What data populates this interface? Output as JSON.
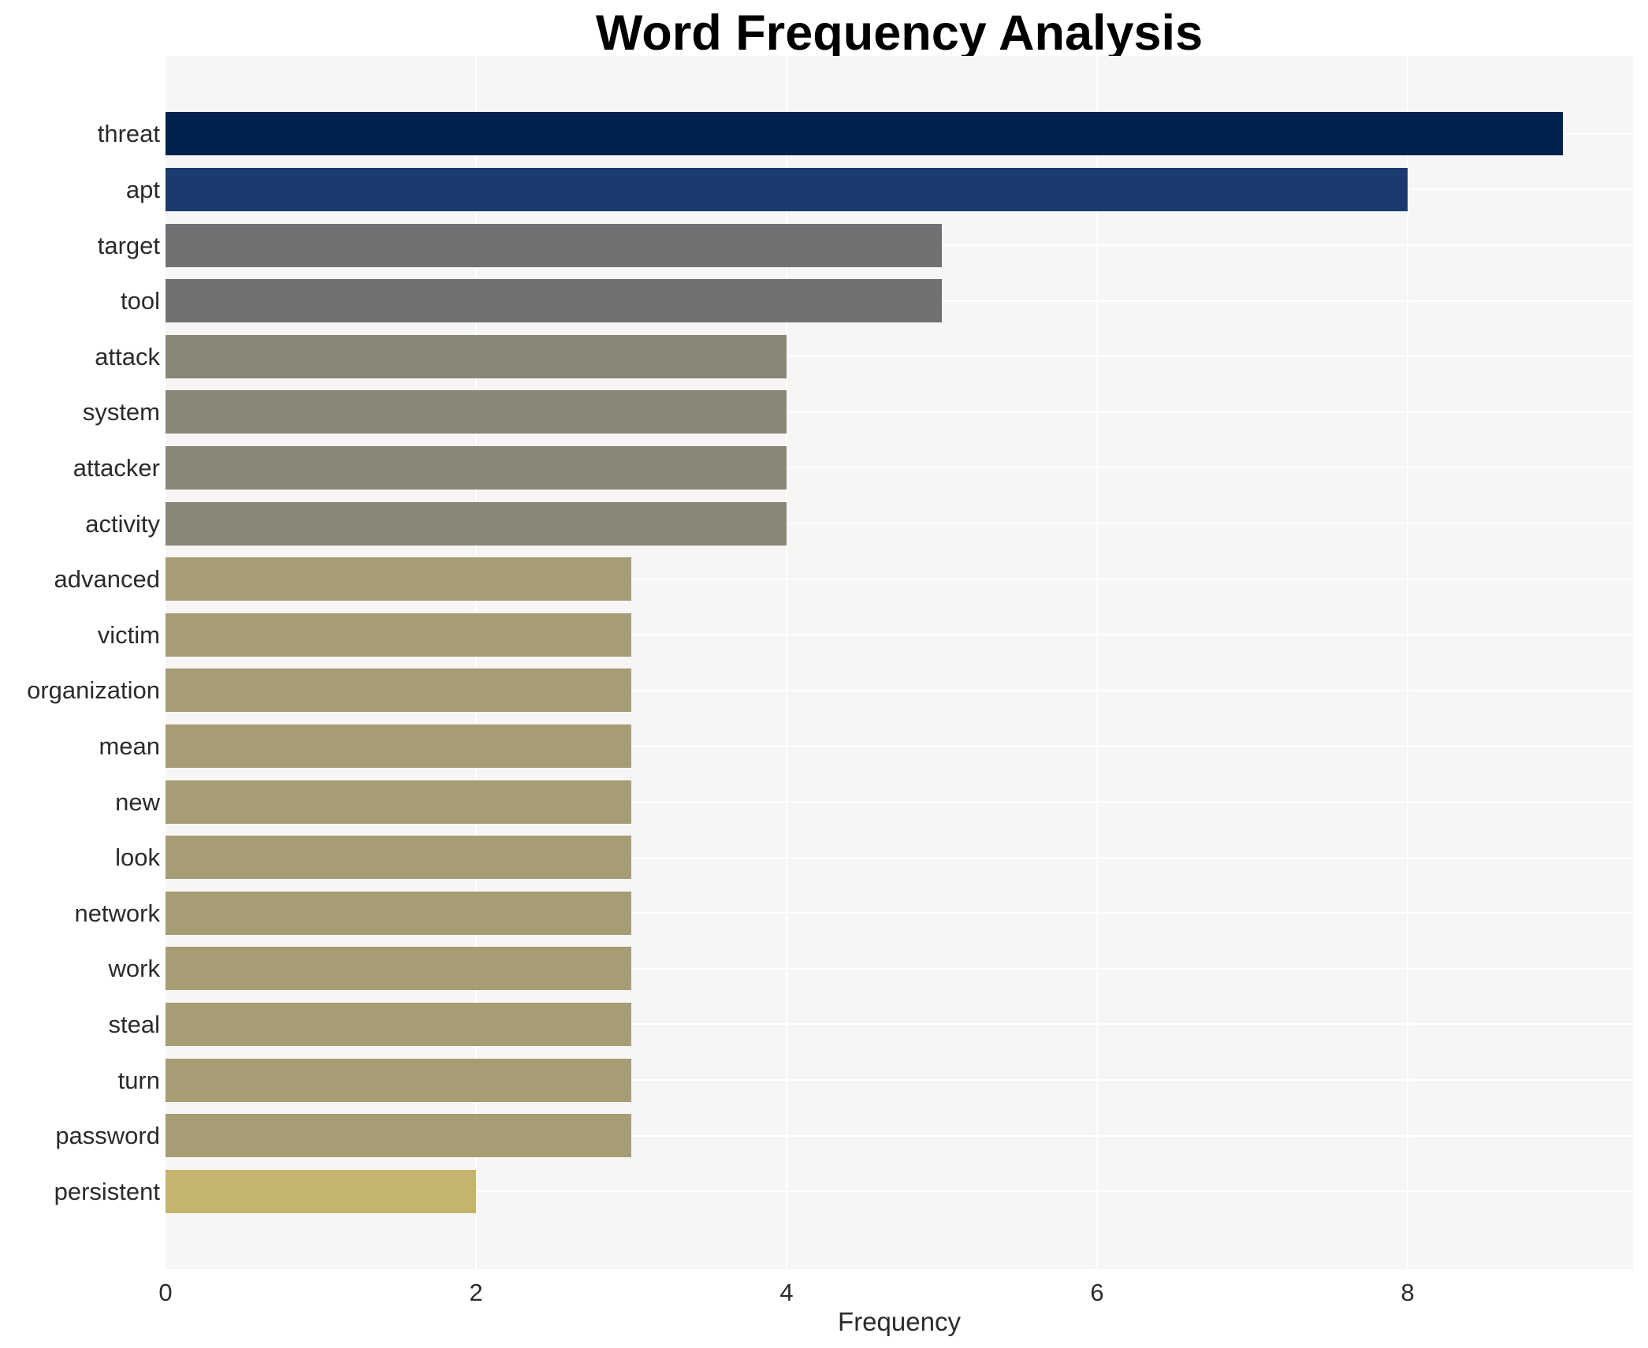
{
  "chart_data": {
    "type": "bar",
    "orientation": "horizontal",
    "title": "Word Frequency Analysis",
    "xlabel": "Frequency",
    "ylabel": "",
    "categories": [
      "threat",
      "apt",
      "target",
      "tool",
      "attack",
      "system",
      "attacker",
      "activity",
      "advanced",
      "victim",
      "organization",
      "mean",
      "new",
      "look",
      "network",
      "work",
      "steal",
      "turn",
      "password",
      "persistent"
    ],
    "values": [
      9,
      8,
      5,
      5,
      4,
      4,
      4,
      4,
      3,
      3,
      3,
      3,
      3,
      3,
      3,
      3,
      3,
      3,
      3,
      2
    ],
    "bar_colors": [
      "#00224e",
      "#1a3a70",
      "#707173",
      "#707173",
      "#8a8678",
      "#8a8678",
      "#8a8678",
      "#8a8678",
      "#a69d75",
      "#a69d75",
      "#a69d75",
      "#a69d75",
      "#a69d75",
      "#a69d75",
      "#a69d75",
      "#a69d75",
      "#a69d75",
      "#a69d75",
      "#a69d75",
      "#c4b56c"
    ],
    "xticks": [
      "0",
      "2",
      "4",
      "6",
      "8"
    ],
    "xtick_values": [
      0,
      2,
      4,
      6,
      8
    ],
    "xlim": [
      0,
      9.45
    ],
    "grid": true,
    "legend_position": "none",
    "colors": {
      "plot_background": "#f7f6f5",
      "outer_background": "#ffffff",
      "gridline": "#ffffff",
      "axis_text": "#2b2b2b",
      "title_text": "#000000"
    }
  }
}
